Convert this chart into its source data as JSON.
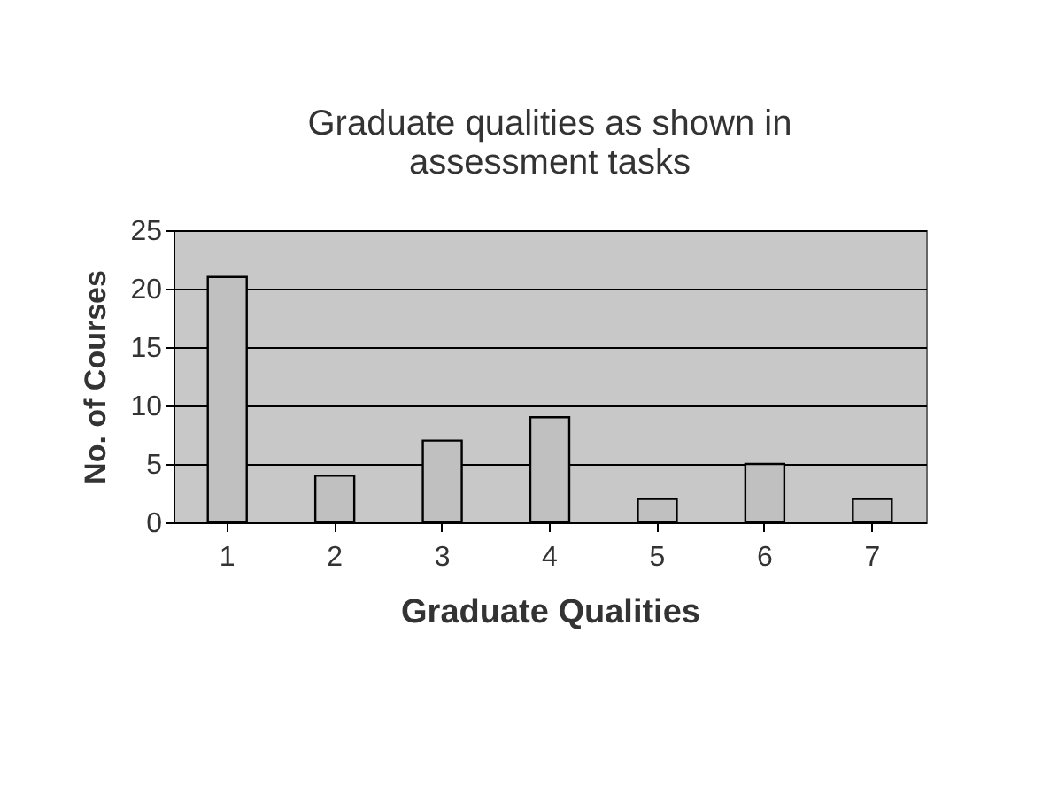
{
  "chart_data": {
    "type": "bar",
    "title": [
      "Graduate qualities as shown in",
      "assessment tasks"
    ],
    "xlabel": "Graduate Qualities",
    "ylabel": "No. of Courses",
    "categories": [
      "1",
      "2",
      "3",
      "4",
      "5",
      "6",
      "7"
    ],
    "values": [
      21,
      4,
      7,
      9,
      2,
      5,
      2
    ],
    "color": "#c0c0c0",
    "ylim": [
      0,
      25
    ],
    "yticks": [
      0,
      5,
      10,
      15,
      20,
      25
    ],
    "grid": "y"
  }
}
